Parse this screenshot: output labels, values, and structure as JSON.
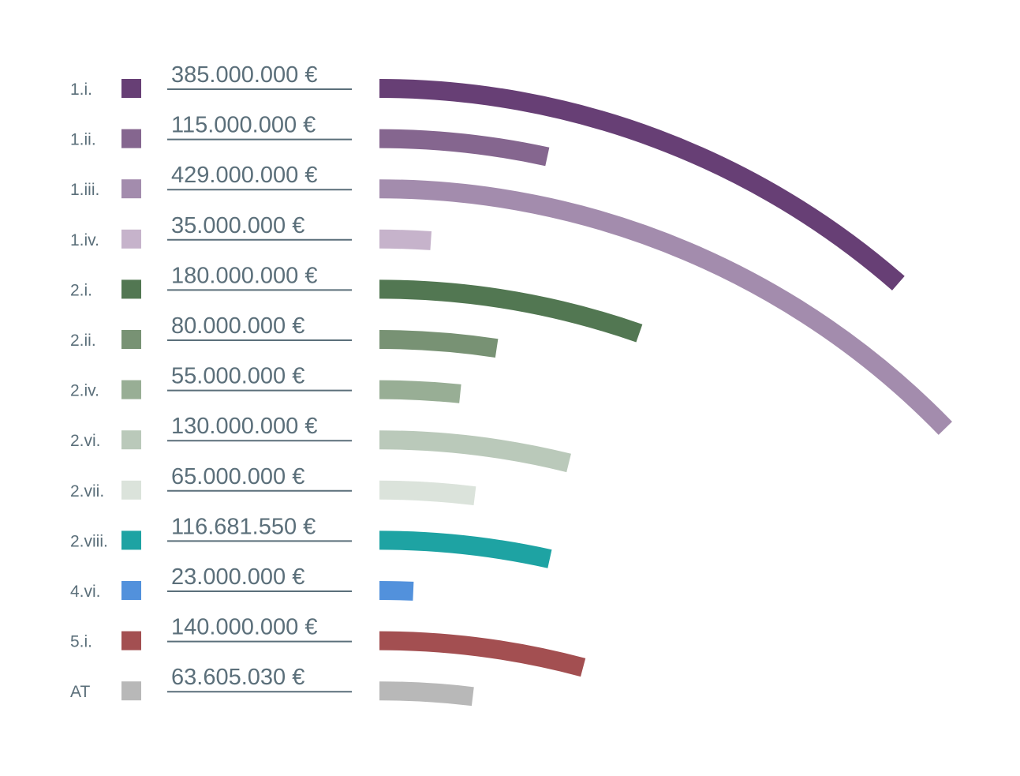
{
  "chart_data": {
    "type": "bar",
    "orientation": "horizontal-arc",
    "title": "",
    "xlabel": "",
    "ylabel": "",
    "value_unit": "€",
    "max_value": 429000000,
    "rows": [
      {
        "code": "1.i.",
        "value": 385000000,
        "value_label": "385.000.000 €",
        "color": "#673f75"
      },
      {
        "code": "1.ii.",
        "value": 115000000,
        "value_label": "115.000.000 €",
        "color": "#85668f"
      },
      {
        "code": "1.iii.",
        "value": 429000000,
        "value_label": "429.000.000 €",
        "color": "#a38cad"
      },
      {
        "code": "1.iv.",
        "value": 35000000,
        "value_label": "35.000.000 €",
        "color": "#c6b3cb"
      },
      {
        "code": "2.i.",
        "value": 180000000,
        "value_label": "180.000.000 €",
        "color": "#527752"
      },
      {
        "code": "2.ii.",
        "value": 80000000,
        "value_label": "80.000.000 €",
        "color": "#789274"
      },
      {
        "code": "2.iv.",
        "value": 55000000,
        "value_label": "55.000.000 €",
        "color": "#98ae95"
      },
      {
        "code": "2.vi.",
        "value": 130000000,
        "value_label": "130.000.000 €",
        "color": "#bac9ba"
      },
      {
        "code": "2.vii.",
        "value": 65000000,
        "value_label": "65.000.000 €",
        "color": "#dbe3db"
      },
      {
        "code": "2.viii.",
        "value": 116681550,
        "value_label": "116.681.550 €",
        "color": "#1ea3a3"
      },
      {
        "code": "4.vi.",
        "value": 23000000,
        "value_label": "23.000.000 €",
        "color": "#5291dc"
      },
      {
        "code": "5.i.",
        "value": 140000000,
        "value_label": "140.000.000 €",
        "color": "#a34f51"
      },
      {
        "code": "AT",
        "value": 63605030,
        "value_label": "63.605.030 €",
        "color": "#b8b8b8"
      }
    ]
  }
}
